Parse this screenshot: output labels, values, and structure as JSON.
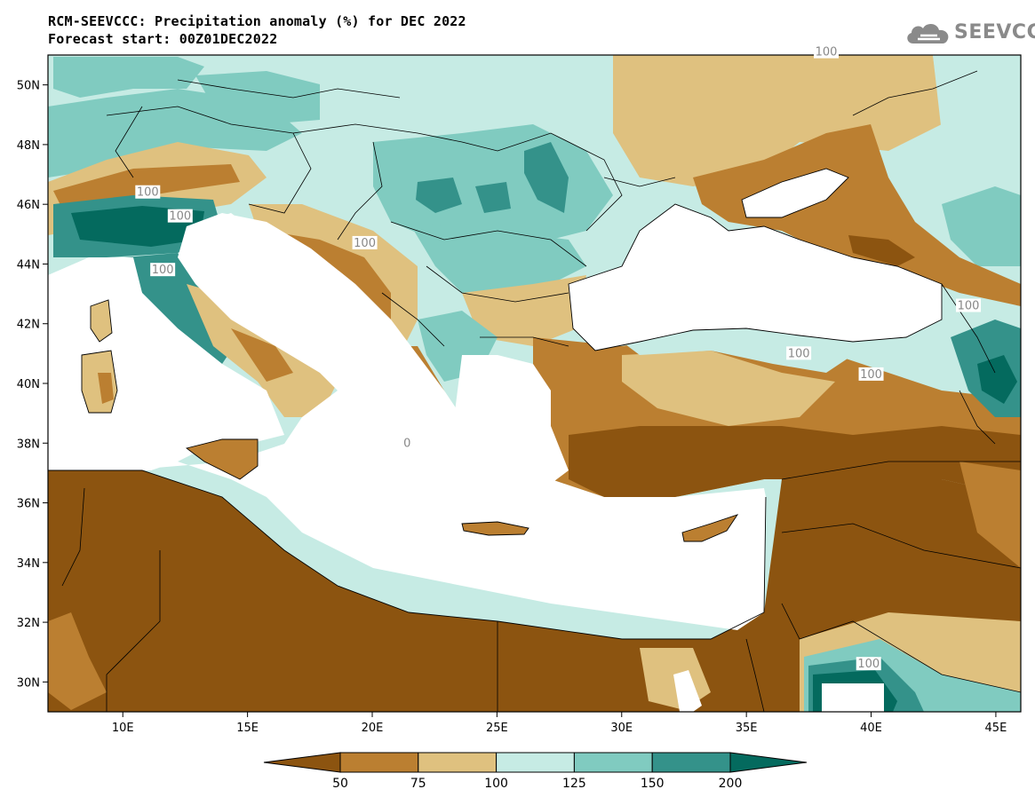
{
  "header": {
    "title_line1": "RCM-SEEVCCC: Precipitation anomaly (%) for DEC 2022",
    "title_line2": "Forecast start: 00Z01DEC2022"
  },
  "logo": {
    "text": "SEEVCCC",
    "icon": "cloud-logo-icon"
  },
  "map": {
    "type": "contour-map",
    "lon_range": [
      7,
      46
    ],
    "lat_range": [
      29,
      51
    ],
    "lon_ticks": [
      {
        "value": 10,
        "label": "10E"
      },
      {
        "value": 15,
        "label": "15E"
      },
      {
        "value": 20,
        "label": "20E"
      },
      {
        "value": 25,
        "label": "25E"
      },
      {
        "value": 30,
        "label": "30E"
      },
      {
        "value": 35,
        "label": "35E"
      },
      {
        "value": 40,
        "label": "40E"
      },
      {
        "value": 45,
        "label": "45E"
      }
    ],
    "lat_ticks": [
      {
        "value": 30,
        "label": "30N"
      },
      {
        "value": 32,
        "label": "32N"
      },
      {
        "value": 34,
        "label": "34N"
      },
      {
        "value": 36,
        "label": "36N"
      },
      {
        "value": 38,
        "label": "38N"
      },
      {
        "value": 40,
        "label": "40N"
      },
      {
        "value": 42,
        "label": "42N"
      },
      {
        "value": 44,
        "label": "44N"
      },
      {
        "value": 46,
        "label": "46N"
      },
      {
        "value": 48,
        "label": "48N"
      },
      {
        "value": 50,
        "label": "50N"
      }
    ],
    "contour_labels": [
      {
        "text": "100",
        "lon": 11.0,
        "lat": 46.4
      },
      {
        "text": "100",
        "lon": 12.3,
        "lat": 45.6
      },
      {
        "text": "100",
        "lon": 19.7,
        "lat": 44.7
      },
      {
        "text": "100",
        "lon": 11.6,
        "lat": 43.8
      },
      {
        "text": "100",
        "lon": 37.1,
        "lat": 41.0
      },
      {
        "text": "100",
        "lon": 40.0,
        "lat": 40.3
      },
      {
        "text": "100",
        "lon": 43.9,
        "lat": 42.6
      },
      {
        "text": "100",
        "lon": 39.9,
        "lat": 30.6
      },
      {
        "text": "100",
        "lon": 38.2,
        "lat": 51.1
      },
      {
        "text": "0",
        "lon": 21.4,
        "lat": 38.0
      }
    ],
    "colors": {
      "below_50": "#8c5410",
      "50_75": "#bb7f31",
      "75_100": "#dfc17f",
      "100_125": "#c6ebe4",
      "125_150": "#80cbc0",
      "150_200": "#34928a",
      "above_200": "#046a5e",
      "sea": "#ffffff"
    }
  },
  "colorbar": {
    "labels": [
      "50",
      "75",
      "100",
      "125",
      "150",
      "200"
    ],
    "colors": [
      "#8c5410",
      "#bb7f31",
      "#dfc17f",
      "#c6ebe4",
      "#80cbc0",
      "#34928a",
      "#046a5e"
    ]
  }
}
